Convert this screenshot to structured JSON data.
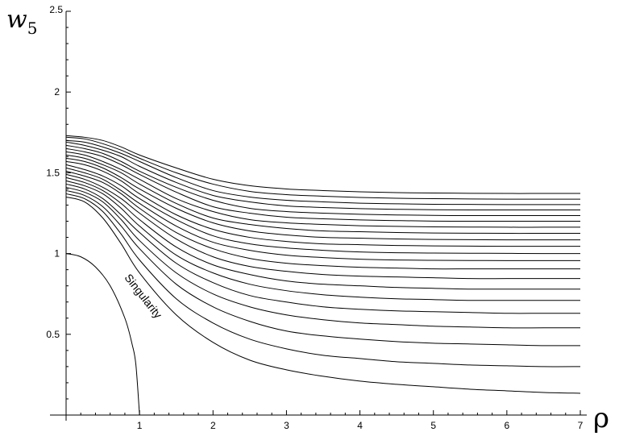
{
  "chart_data": {
    "type": "line",
    "xlabel": "ρ",
    "ylabel": {
      "base": "w",
      "subscript": "5"
    },
    "xlim": [
      0,
      7
    ],
    "ylim": [
      0,
      2.5
    ],
    "x_ticks": [
      1,
      2,
      3,
      4,
      5,
      6,
      7
    ],
    "y_ticks": [
      0.5,
      1,
      1.5,
      2,
      2.5
    ],
    "grid": false,
    "annotation": {
      "text": "Singularity",
      "anchor_x": 0.35,
      "anchor_y": 0.8
    },
    "singularity_curve": {
      "x": [
        0,
        0.2,
        0.4,
        0.6,
        0.8,
        0.9,
        0.95,
        1.0
      ],
      "y": [
        1.0,
        0.98,
        0.917,
        0.8,
        0.6,
        0.436,
        0.312,
        0.0
      ]
    },
    "series_x": [
      0,
      0.25,
      0.5,
      0.75,
      1,
      1.5,
      2,
      2.5,
      3,
      3.5,
      4,
      4.5,
      5,
      5.5,
      6,
      6.5,
      7
    ],
    "series": [
      {
        "values": [
          1.35,
          1.32,
          1.22,
          1.06,
          0.88,
          0.62,
          0.45,
          0.34,
          0.28,
          0.24,
          0.21,
          0.19,
          0.175,
          0.16,
          0.15,
          0.14,
          0.135
        ]
      },
      {
        "values": [
          1.37,
          1.34,
          1.26,
          1.12,
          0.96,
          0.72,
          0.57,
          0.47,
          0.41,
          0.37,
          0.35,
          0.33,
          0.32,
          0.31,
          0.305,
          0.3,
          0.3
        ]
      },
      {
        "values": [
          1.39,
          1.36,
          1.29,
          1.17,
          1.03,
          0.81,
          0.67,
          0.58,
          0.52,
          0.49,
          0.47,
          0.455,
          0.445,
          0.44,
          0.435,
          0.43,
          0.43
        ]
      },
      {
        "values": [
          1.41,
          1.38,
          1.32,
          1.21,
          1.08,
          0.88,
          0.75,
          0.67,
          0.62,
          0.59,
          0.57,
          0.56,
          0.55,
          0.545,
          0.54,
          0.54,
          0.54
        ]
      },
      {
        "values": [
          1.43,
          1.4,
          1.34,
          1.24,
          1.13,
          0.94,
          0.82,
          0.74,
          0.7,
          0.67,
          0.655,
          0.645,
          0.64,
          0.635,
          0.63,
          0.63,
          0.63
        ]
      },
      {
        "values": [
          1.45,
          1.42,
          1.37,
          1.28,
          1.17,
          0.99,
          0.88,
          0.81,
          0.77,
          0.745,
          0.73,
          0.72,
          0.715,
          0.71,
          0.71,
          0.71,
          0.71
        ]
      },
      {
        "values": [
          1.47,
          1.44,
          1.39,
          1.31,
          1.21,
          1.04,
          0.93,
          0.87,
          0.83,
          0.81,
          0.8,
          0.79,
          0.785,
          0.78,
          0.78,
          0.78,
          0.78
        ]
      },
      {
        "values": [
          1.49,
          1.46,
          1.41,
          1.34,
          1.25,
          1.09,
          0.98,
          0.92,
          0.89,
          0.87,
          0.86,
          0.855,
          0.85,
          0.845,
          0.845,
          0.845,
          0.845
        ]
      },
      {
        "values": [
          1.51,
          1.48,
          1.44,
          1.37,
          1.28,
          1.13,
          1.03,
          0.97,
          0.94,
          0.925,
          0.915,
          0.91,
          0.905,
          0.905,
          0.905,
          0.905,
          0.905
        ]
      },
      {
        "values": [
          1.53,
          1.5,
          1.46,
          1.39,
          1.31,
          1.17,
          1.07,
          1.02,
          0.99,
          0.975,
          0.965,
          0.96,
          0.958,
          0.957,
          0.956,
          0.956,
          0.956
        ]
      },
      {
        "values": [
          1.55,
          1.52,
          1.48,
          1.42,
          1.34,
          1.21,
          1.11,
          1.06,
          1.035,
          1.02,
          1.01,
          1.005,
          1.003,
          1.002,
          1.001,
          1.0,
          1.0
        ]
      },
      {
        "values": [
          1.57,
          1.55,
          1.51,
          1.45,
          1.37,
          1.24,
          1.15,
          1.1,
          1.075,
          1.06,
          1.055,
          1.05,
          1.047,
          1.046,
          1.045,
          1.045,
          1.045
        ]
      },
      {
        "values": [
          1.59,
          1.57,
          1.53,
          1.47,
          1.4,
          1.28,
          1.19,
          1.14,
          1.115,
          1.1,
          1.095,
          1.09,
          1.087,
          1.086,
          1.085,
          1.085,
          1.085
        ]
      },
      {
        "values": [
          1.61,
          1.59,
          1.55,
          1.5,
          1.43,
          1.31,
          1.22,
          1.18,
          1.155,
          1.14,
          1.135,
          1.13,
          1.127,
          1.126,
          1.125,
          1.125,
          1.125
        ]
      },
      {
        "values": [
          1.63,
          1.61,
          1.57,
          1.52,
          1.46,
          1.34,
          1.26,
          1.21,
          1.19,
          1.18,
          1.172,
          1.168,
          1.165,
          1.164,
          1.163,
          1.163,
          1.163
        ]
      },
      {
        "values": [
          1.65,
          1.63,
          1.6,
          1.55,
          1.49,
          1.38,
          1.29,
          1.25,
          1.225,
          1.215,
          1.208,
          1.204,
          1.201,
          1.2,
          1.2,
          1.2,
          1.2
        ]
      },
      {
        "values": [
          1.67,
          1.65,
          1.62,
          1.57,
          1.51,
          1.41,
          1.33,
          1.28,
          1.26,
          1.25,
          1.243,
          1.239,
          1.236,
          1.235,
          1.235,
          1.235,
          1.235
        ]
      },
      {
        "values": [
          1.69,
          1.67,
          1.64,
          1.6,
          1.54,
          1.44,
          1.36,
          1.32,
          1.295,
          1.285,
          1.278,
          1.274,
          1.271,
          1.27,
          1.27,
          1.27,
          1.27
        ]
      },
      {
        "values": [
          1.7,
          1.69,
          1.66,
          1.62,
          1.57,
          1.47,
          1.39,
          1.35,
          1.33,
          1.32,
          1.312,
          1.308,
          1.305,
          1.304,
          1.303,
          1.303,
          1.303
        ]
      },
      {
        "values": [
          1.72,
          1.71,
          1.68,
          1.64,
          1.59,
          1.5,
          1.43,
          1.385,
          1.365,
          1.355,
          1.347,
          1.342,
          1.34,
          1.338,
          1.337,
          1.337,
          1.337
        ]
      },
      {
        "values": [
          1.73,
          1.72,
          1.7,
          1.66,
          1.61,
          1.53,
          1.46,
          1.42,
          1.4,
          1.39,
          1.382,
          1.377,
          1.375,
          1.373,
          1.372,
          1.372,
          1.372
        ]
      }
    ]
  }
}
